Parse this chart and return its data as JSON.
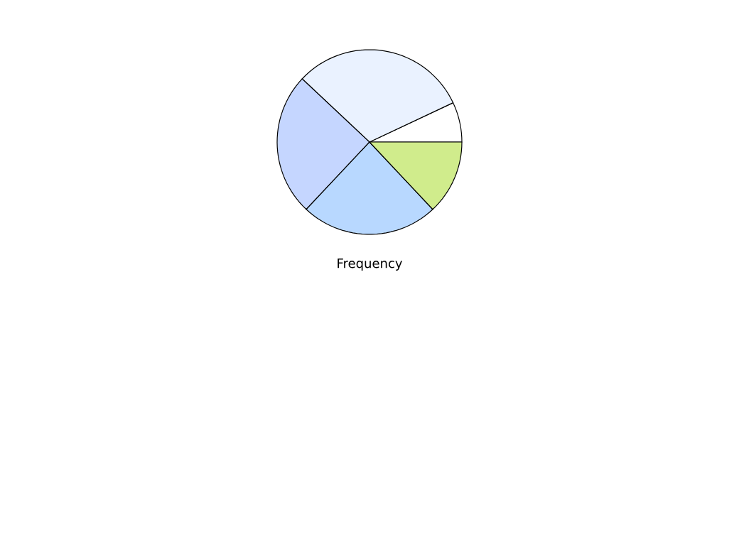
{
  "chart_data": {
    "type": "pie",
    "title": "Frequency",
    "categories": [
      null,
      null,
      null,
      null,
      null
    ],
    "values": [
      7,
      31,
      25,
      24,
      13
    ],
    "colors": [
      "#ffffff",
      "#eaf2ff",
      "#c5d6ff",
      "#b8d8ff",
      "#d0ec8c"
    ]
  }
}
